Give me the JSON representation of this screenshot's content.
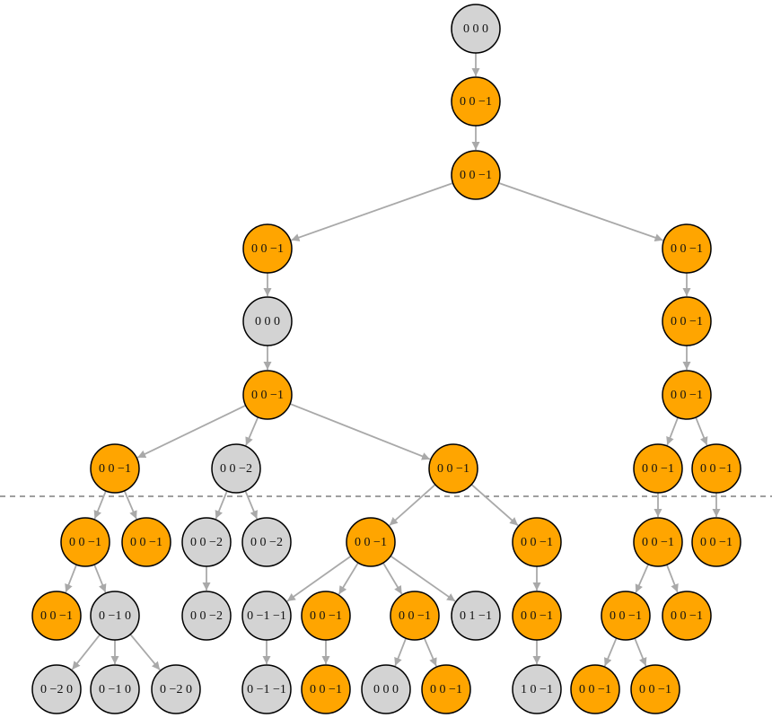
{
  "nodes": [
    {
      "label": "0 0 0",
      "color": "#d3d3d3"
    },
    {
      "label": "0 0 −1",
      "color": "#ffa500"
    },
    {
      "label": "0 0 −1",
      "color": "#ffa500"
    },
    {
      "label": "0 0 −1",
      "color": "#ffa500"
    },
    {
      "label": "0 0 −1",
      "color": "#ffa500"
    },
    {
      "label": "0 0 0",
      "color": "#d3d3d3"
    },
    {
      "label": "0 0 −1",
      "color": "#ffa500"
    },
    {
      "label": "0 0 −1",
      "color": "#ffa500"
    },
    {
      "label": "0 0 −1",
      "color": "#ffa500"
    },
    {
      "label": "0 0 −1",
      "color": "#ffa500"
    },
    {
      "label": "0 0 −2",
      "color": "#d3d3d3"
    },
    {
      "label": "0 0 −1",
      "color": "#ffa500"
    },
    {
      "label": "0 0 −1",
      "color": "#ffa500"
    },
    {
      "label": "0 0 −1",
      "color": "#ffa500"
    },
    {
      "label": "0 0 −1",
      "color": "#ffa500"
    },
    {
      "label": "0 0 −1",
      "color": "#ffa500"
    },
    {
      "label": "0 0 −2",
      "color": "#d3d3d3"
    },
    {
      "label": "0 0 −2",
      "color": "#d3d3d3"
    },
    {
      "label": "0 0 −1",
      "color": "#ffa500"
    },
    {
      "label": "0 0 −1",
      "color": "#ffa500"
    },
    {
      "label": "0 0 −1",
      "color": "#ffa500"
    },
    {
      "label": "0 0 −1",
      "color": "#ffa500"
    },
    {
      "label": "0 0 −1",
      "color": "#ffa500"
    },
    {
      "label": "0 −1 0",
      "color": "#d3d3d3"
    },
    {
      "label": "0 0 −2",
      "color": "#d3d3d3"
    },
    {
      "label": "0 −1 −1",
      "color": "#d3d3d3"
    },
    {
      "label": "0 0 −1",
      "color": "#ffa500"
    },
    {
      "label": "0 0 −1",
      "color": "#ffa500"
    },
    {
      "label": "0 1 −1",
      "color": "#d3d3d3"
    },
    {
      "label": "0 0 −1",
      "color": "#ffa500"
    },
    {
      "label": "0 0 −1",
      "color": "#ffa500"
    },
    {
      "label": "0 0 −1",
      "color": "#ffa500"
    },
    {
      "label": "0 −2 0",
      "color": "#d3d3d3"
    },
    {
      "label": "0 −1 0",
      "color": "#d3d3d3"
    },
    {
      "label": "0 −2 0",
      "color": "#d3d3d3"
    },
    {
      "label": "0 −1 −1",
      "color": "#d3d3d3"
    },
    {
      "label": "0 0 −1",
      "color": "#ffa500"
    },
    {
      "label": "0 0 0",
      "color": "#d3d3d3"
    },
    {
      "label": "0 0 −1",
      "color": "#ffa500"
    },
    {
      "label": "1 0 −1",
      "color": "#d3d3d3"
    },
    {
      "label": "0 0 −1",
      "color": "#ffa500"
    },
    {
      "label": "0 0 −1",
      "color": "#ffa500"
    }
  ]
}
